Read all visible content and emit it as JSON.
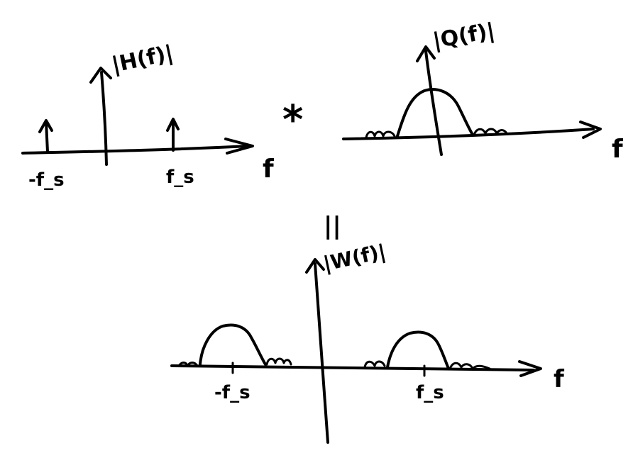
{
  "panel_h": {
    "ylabel": "|H(f)|",
    "xlabel": "f",
    "tick_left": "-f_s",
    "tick_right": "f_s"
  },
  "operator": "*",
  "panel_q": {
    "ylabel": "|Q(f)|",
    "xlabel": "f"
  },
  "equals": "||",
  "panel_w": {
    "ylabel": "|W(f)|",
    "xlabel": "f",
    "tick_left": "-f_s",
    "tick_right": "f_s"
  }
}
